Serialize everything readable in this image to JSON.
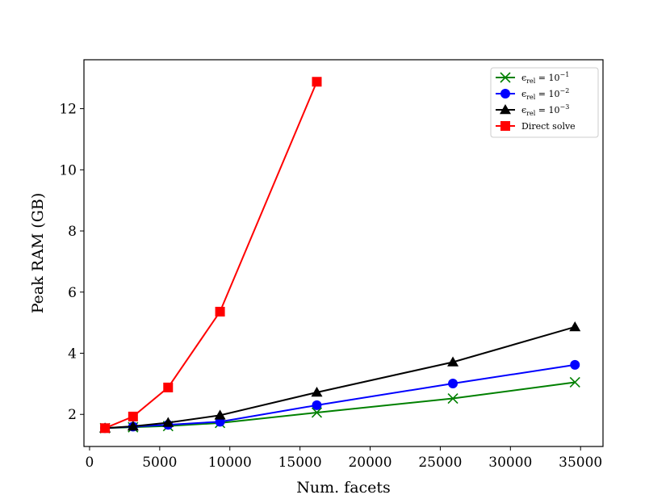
{
  "chart_data": {
    "type": "line",
    "title": "",
    "xlabel": "Num. facets",
    "ylabel": "Peak RAM (GB)",
    "xlim": [
      -400,
      36600
    ],
    "ylim": [
      0.95,
      13.6
    ],
    "x_ticks": [
      0,
      5000,
      10000,
      15000,
      20000,
      25000,
      30000,
      35000
    ],
    "y_ticks": [
      2,
      4,
      6,
      8,
      10,
      12
    ],
    "legend_position": "top-right",
    "grid": false,
    "series": [
      {
        "name": "ε_rel = 10^-1",
        "legend_base": "ϵ",
        "legend_sub": "rel",
        "legend_eq": " = 10",
        "legend_sup": "−1",
        "color": "#008000",
        "marker": "x",
        "x": [
          1100,
          3100,
          5600,
          9300,
          16200,
          25900,
          34600
        ],
        "y": [
          1.55,
          1.58,
          1.62,
          1.72,
          2.06,
          2.52,
          3.05
        ]
      },
      {
        "name": "ε_rel = 10^-2",
        "legend_base": "ϵ",
        "legend_sub": "rel",
        "legend_eq": " = 10",
        "legend_sup": "−2",
        "color": "#0000ff",
        "marker": "circle",
        "x": [
          1100,
          3100,
          5600,
          9300,
          16200,
          25900,
          34600
        ],
        "y": [
          1.55,
          1.6,
          1.66,
          1.76,
          2.3,
          3.01,
          3.62
        ]
      },
      {
        "name": "ε_rel = 10^-3",
        "legend_base": "ϵ",
        "legend_sub": "rel",
        "legend_eq": " = 10",
        "legend_sup": "−3",
        "color": "#000000",
        "marker": "triangle",
        "x": [
          1100,
          3100,
          5600,
          9300,
          16200,
          25900,
          34600
        ],
        "y": [
          1.55,
          1.61,
          1.73,
          1.97,
          2.72,
          3.71,
          4.86
        ]
      },
      {
        "name": "Direct solve",
        "color": "#ff0000",
        "marker": "square",
        "x": [
          1100,
          3100,
          5600,
          9300,
          16200
        ],
        "y": [
          1.55,
          1.93,
          2.88,
          5.36,
          12.88
        ]
      }
    ]
  }
}
